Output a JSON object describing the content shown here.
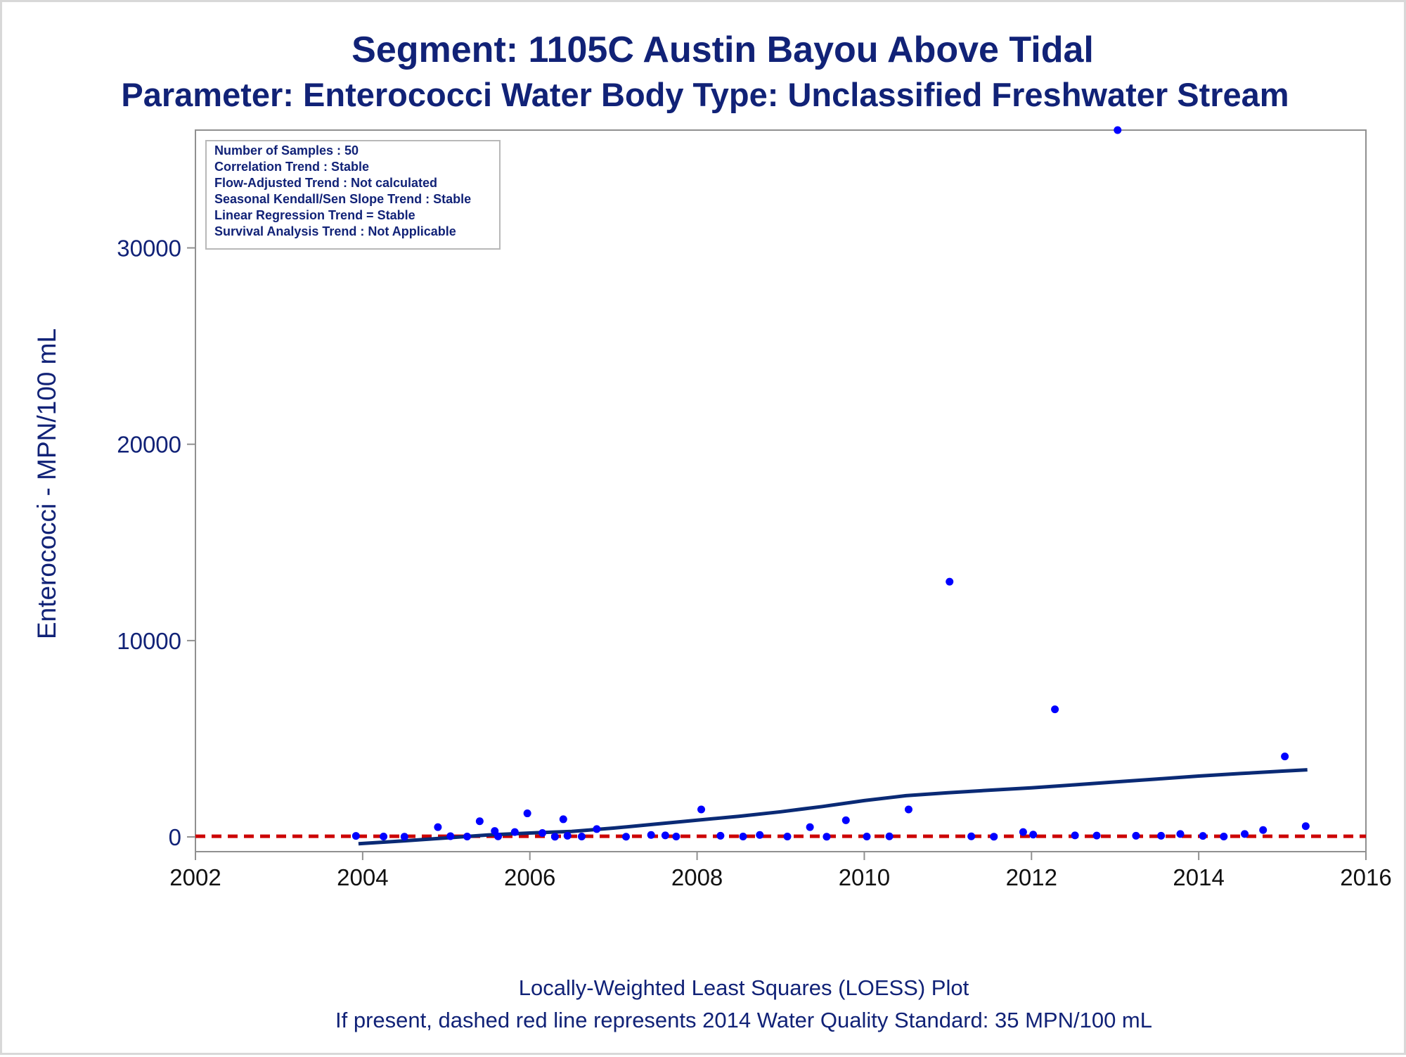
{
  "titles": {
    "line1": "Segment: 1105C  Austin Bayou Above Tidal",
    "line2": "Parameter: Enterococci   Water Body Type: Unclassified Freshwater Stream"
  },
  "footnotes": {
    "line1": "Locally-Weighted Least Squares (LOESS) Plot",
    "line2": "If present, dashed red line represents 2014 Water Quality Standard: 35 MPN/100 mL"
  },
  "colors": {
    "text": "#112277",
    "points": "#0000ff",
    "loess": "#0a2a75",
    "standard": "#cc0000",
    "frame": "#909090"
  },
  "chart_data": {
    "type": "scatter",
    "ylabel": "Enterococci - MPN/100 mL",
    "xlabel": "",
    "xlim": [
      2002,
      2016
    ],
    "ylim": [
      -750,
      36000
    ],
    "x_ticks": [
      2002,
      2004,
      2006,
      2008,
      2010,
      2012,
      2014,
      2016
    ],
    "y_ticks": [
      0,
      10000,
      20000,
      30000
    ],
    "grid": false,
    "legend_box": {
      "position": "top-left",
      "lines": [
        "Number of Samples : 50",
        "Correlation Trend : Stable",
        "Flow-Adjusted Trend : Not calculated",
        "Seasonal Kendall/Sen Slope Trend : Stable",
        "Linear Regression Trend = Stable",
        "Survival Analysis Trend : Not Applicable"
      ]
    },
    "standard_line": {
      "value": 35,
      "style": "dashed"
    },
    "series": [
      {
        "type": "scatter",
        "points": [
          [
            2003.92,
            50
          ],
          [
            2004.25,
            20
          ],
          [
            2004.5,
            10
          ],
          [
            2004.9,
            500
          ],
          [
            2005.05,
            40
          ],
          [
            2005.25,
            20
          ],
          [
            2005.4,
            800
          ],
          [
            2005.58,
            300
          ],
          [
            2005.62,
            30
          ],
          [
            2005.82,
            250
          ],
          [
            2005.97,
            1200
          ],
          [
            2006.15,
            200
          ],
          [
            2006.3,
            10
          ],
          [
            2006.4,
            900
          ],
          [
            2006.45,
            60
          ],
          [
            2006.62,
            20
          ],
          [
            2006.8,
            400
          ],
          [
            2007.15,
            10
          ],
          [
            2007.45,
            100
          ],
          [
            2007.62,
            80
          ],
          [
            2007.75,
            20
          ],
          [
            2008.05,
            1400
          ],
          [
            2008.28,
            60
          ],
          [
            2008.55,
            20
          ],
          [
            2008.75,
            100
          ],
          [
            2009.08,
            20
          ],
          [
            2009.35,
            500
          ],
          [
            2009.55,
            10
          ],
          [
            2009.78,
            850
          ],
          [
            2010.03,
            20
          ],
          [
            2010.3,
            30
          ],
          [
            2010.53,
            1400
          ],
          [
            2011.02,
            13000
          ],
          [
            2011.28,
            30
          ],
          [
            2011.55,
            10
          ],
          [
            2011.9,
            250
          ],
          [
            2012.02,
            120
          ],
          [
            2012.28,
            6500
          ],
          [
            2012.52,
            80
          ],
          [
            2012.78,
            70
          ],
          [
            2013.03,
            36000
          ],
          [
            2013.25,
            60
          ],
          [
            2013.55,
            60
          ],
          [
            2013.78,
            150
          ],
          [
            2014.05,
            50
          ],
          [
            2014.3,
            20
          ],
          [
            2014.55,
            150
          ],
          [
            2014.77,
            350
          ],
          [
            2015.03,
            4100
          ],
          [
            2015.28,
            550
          ]
        ]
      },
      {
        "type": "line",
        "name": "LOESS",
        "points": [
          [
            2003.95,
            -350
          ],
          [
            2004.5,
            -200
          ],
          [
            2005.0,
            -50
          ],
          [
            2005.5,
            100
          ],
          [
            2006.0,
            200
          ],
          [
            2006.5,
            280
          ],
          [
            2007.0,
            450
          ],
          [
            2007.5,
            650
          ],
          [
            2008.0,
            850
          ],
          [
            2008.5,
            1050
          ],
          [
            2009.0,
            1280
          ],
          [
            2009.5,
            1550
          ],
          [
            2010.0,
            1850
          ],
          [
            2010.5,
            2100
          ],
          [
            2011.0,
            2250
          ],
          [
            2011.5,
            2380
          ],
          [
            2012.0,
            2500
          ],
          [
            2012.5,
            2650
          ],
          [
            2013.0,
            2800
          ],
          [
            2013.5,
            2950
          ],
          [
            2014.0,
            3100
          ],
          [
            2014.5,
            3230
          ],
          [
            2015.0,
            3350
          ],
          [
            2015.3,
            3420
          ]
        ]
      }
    ]
  }
}
